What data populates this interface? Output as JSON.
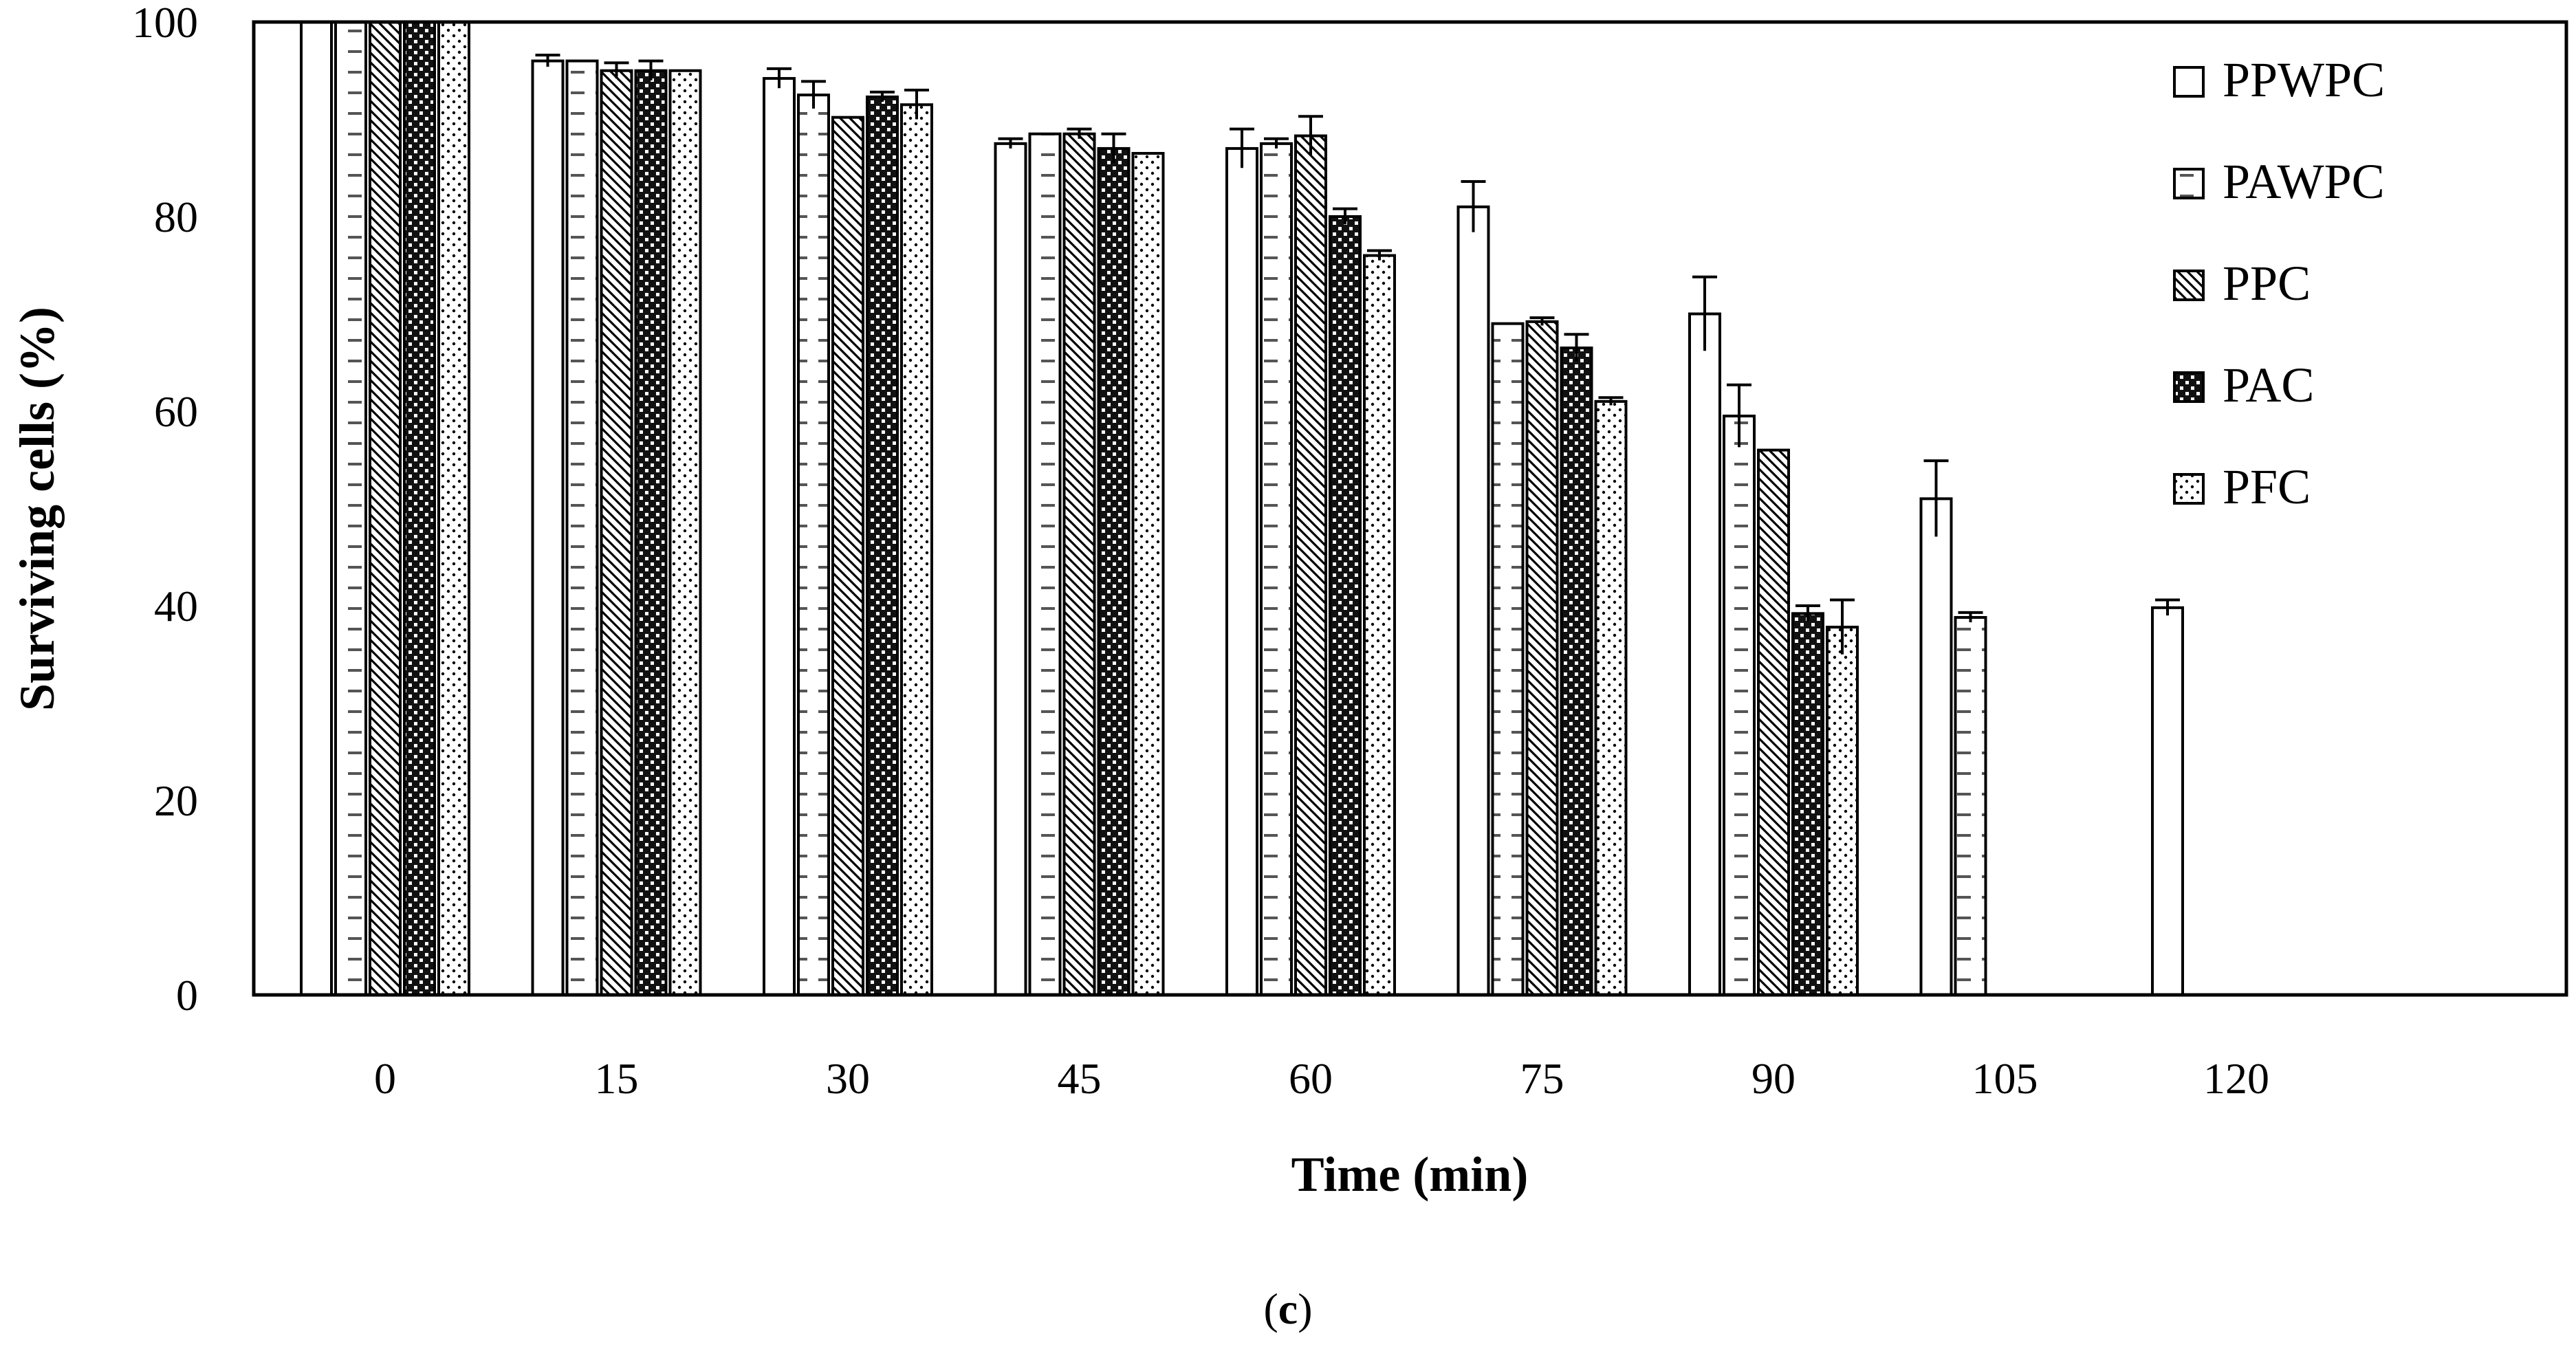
{
  "chart_data": {
    "type": "bar",
    "title": "",
    "xlabel": "Time (min)",
    "ylabel": "Surviving cells (%)",
    "ylim": [
      0,
      100
    ],
    "yticks": [
      0,
      20,
      40,
      60,
      80,
      100
    ],
    "categories": [
      "0",
      "15",
      "30",
      "45",
      "60",
      "75",
      "90",
      "105",
      "120"
    ],
    "series": [
      {
        "name": "PPWPC",
        "pattern": "plain",
        "values": [
          100,
          96,
          94.2,
          87.5,
          87,
          81,
          70,
          51,
          39.8
        ],
        "errors": [
          0,
          0.6,
          1.0,
          0.5,
          2.0,
          2.6,
          3.8,
          3.9,
          0.8
        ]
      },
      {
        "name": "PAWPC",
        "pattern": "dashes",
        "values": [
          100,
          96,
          92.5,
          88.5,
          87.5,
          69,
          59.5,
          38.8,
          null
        ],
        "errors": [
          0,
          0,
          1.4,
          0,
          0.5,
          0,
          3.2,
          0.5,
          null
        ]
      },
      {
        "name": "PPC",
        "pattern": "diagonal",
        "values": [
          100,
          95,
          90.2,
          88.5,
          88.3,
          69.2,
          56,
          null,
          null
        ],
        "errors": [
          0,
          0.8,
          0,
          0.5,
          2.0,
          0.4,
          0,
          null,
          null
        ]
      },
      {
        "name": "PAC",
        "pattern": "checker",
        "values": [
          100,
          95,
          92.3,
          87,
          80,
          66.5,
          39.2,
          null,
          null
        ],
        "errors": [
          0,
          1.0,
          0.5,
          1.5,
          0.8,
          1.4,
          0.8,
          null,
          null
        ]
      },
      {
        "name": "PFC",
        "pattern": "dots",
        "values": [
          100,
          95,
          91.5,
          86.5,
          76,
          61,
          37.8,
          null,
          null
        ],
        "errors": [
          0,
          0,
          1.5,
          0,
          0.5,
          0.4,
          2.8,
          null,
          null
        ]
      }
    ],
    "legend_position": "top-right",
    "grid": false,
    "panel_label": "(c)"
  },
  "panel": {
    "open": "(",
    "letter": "c",
    "close": ")"
  },
  "colors": {
    "axis": "#000000",
    "bar_fill": "#ffffff",
    "error_bar": "#000000",
    "pac_fill": "#1a1a1a"
  }
}
